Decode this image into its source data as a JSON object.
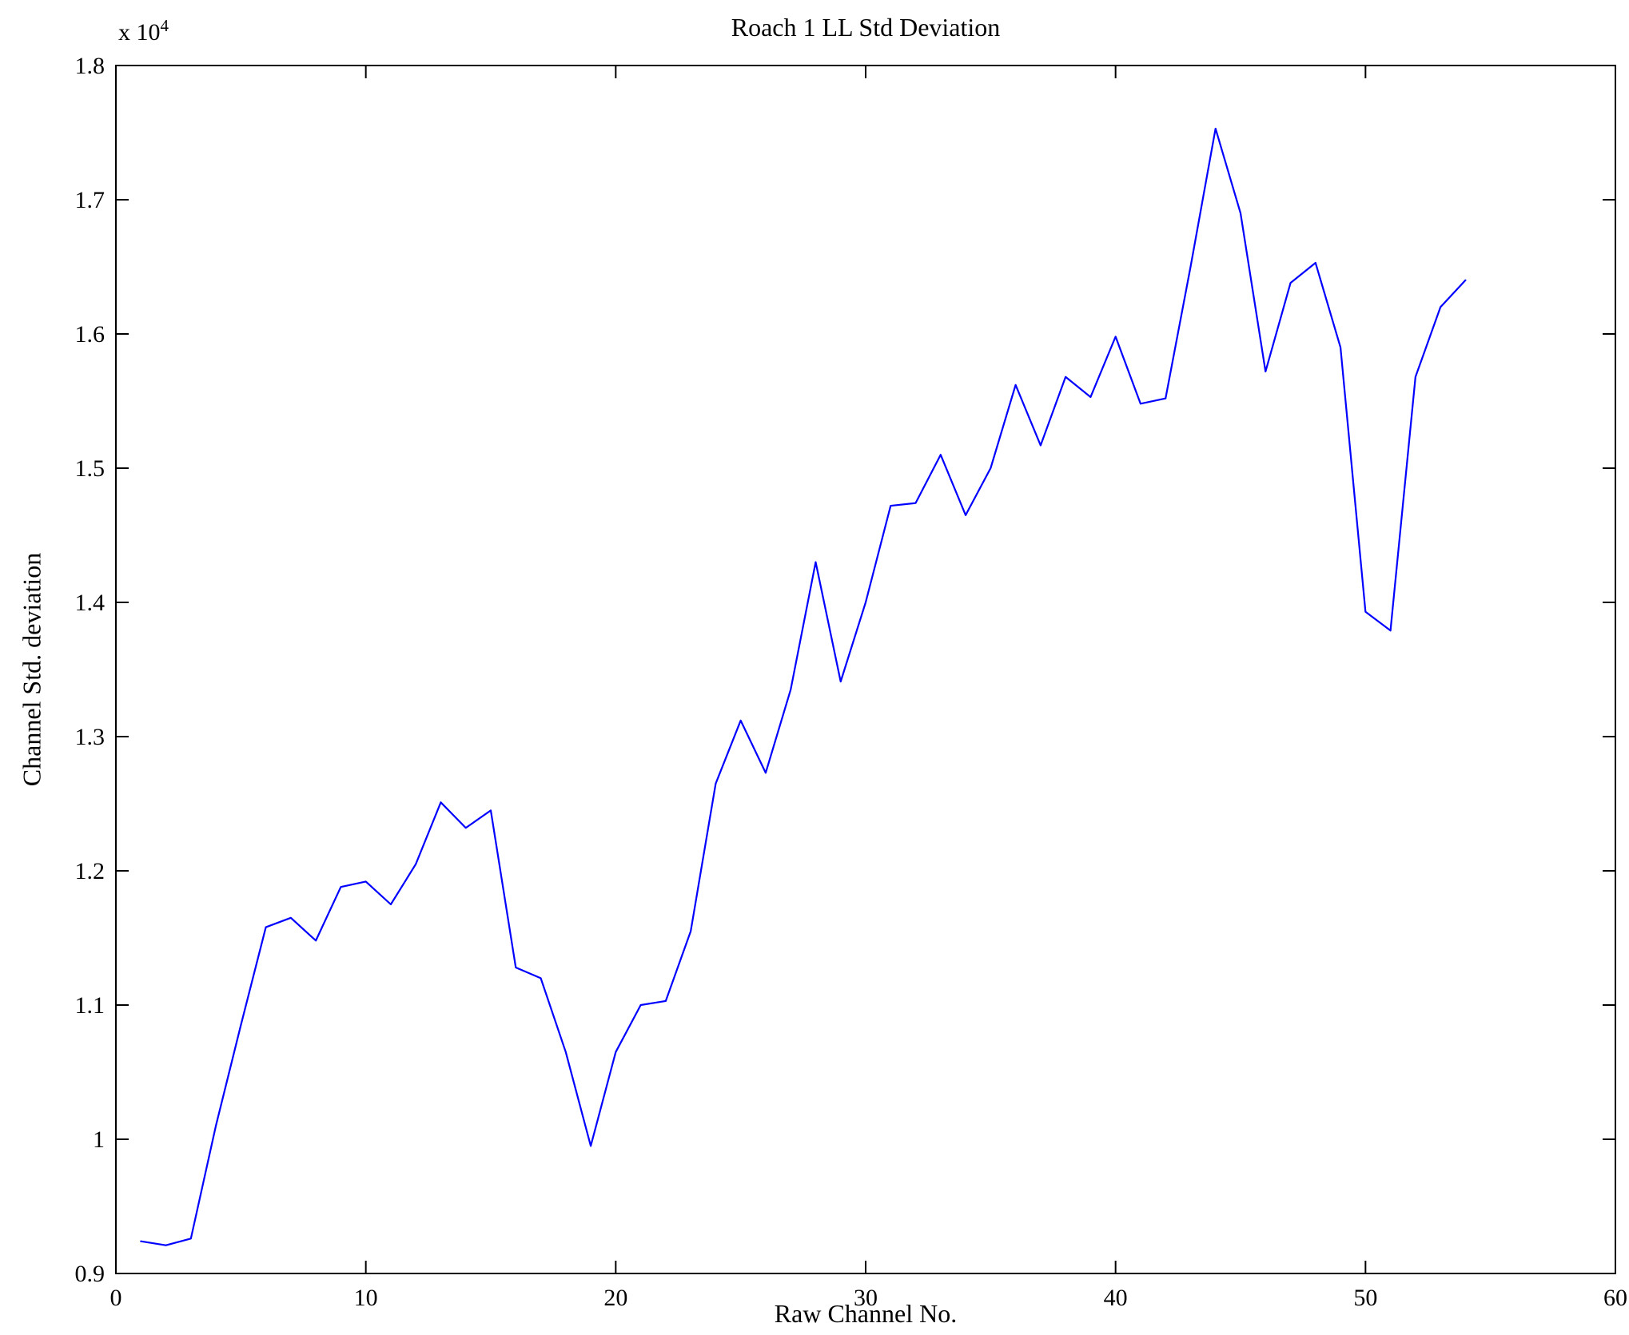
{
  "chart_data": {
    "type": "line",
    "title": "Roach 1 LL Std Deviation",
    "xlabel": "Raw Channel No.",
    "ylabel": "Channel Std. deviation",
    "y_multiplier": {
      "base": "x 10",
      "exp": "4"
    },
    "xlim": [
      0,
      60
    ],
    "ylim": [
      0.9,
      1.8
    ],
    "xticks": [
      "0",
      "10",
      "20",
      "30",
      "40",
      "50",
      "60"
    ],
    "yticks": [
      "0.9",
      "1",
      "1.1",
      "1.2",
      "1.3",
      "1.4",
      "1.5",
      "1.6",
      "1.7",
      "1.8"
    ],
    "grid": false,
    "line_color": "#0000ff",
    "axis_color": "#000000",
    "y_units_scale": 10000,
    "series": [
      {
        "x": [
          1,
          2,
          3,
          4,
          5,
          6,
          7,
          8,
          9,
          10,
          11,
          12,
          13,
          14,
          15,
          16,
          17,
          18,
          19,
          20,
          21,
          22,
          23,
          24,
          25,
          26,
          27,
          28,
          29,
          30,
          31,
          32,
          33,
          34,
          35,
          36,
          37,
          38,
          39,
          40,
          41,
          42,
          43,
          44,
          45,
          46,
          47,
          48,
          49,
          50,
          51,
          52,
          53,
          54
        ],
        "y": [
          0.924,
          0.921,
          0.926,
          1.01,
          1.085,
          1.158,
          1.165,
          1.148,
          1.188,
          1.192,
          1.175,
          1.205,
          1.251,
          1.232,
          1.245,
          1.128,
          1.12,
          1.065,
          0.995,
          1.065,
          1.1,
          1.103,
          1.155,
          1.265,
          1.312,
          1.273,
          1.335,
          1.43,
          1.341,
          1.4,
          1.472,
          1.474,
          1.51,
          1.465,
          1.5,
          1.562,
          1.517,
          1.568,
          1.553,
          1.598,
          1.548,
          1.552,
          1.65,
          1.753,
          1.69,
          1.572,
          1.638,
          1.653,
          1.59,
          1.393,
          1.379,
          1.568,
          1.62,
          1.64
        ]
      }
    ]
  }
}
